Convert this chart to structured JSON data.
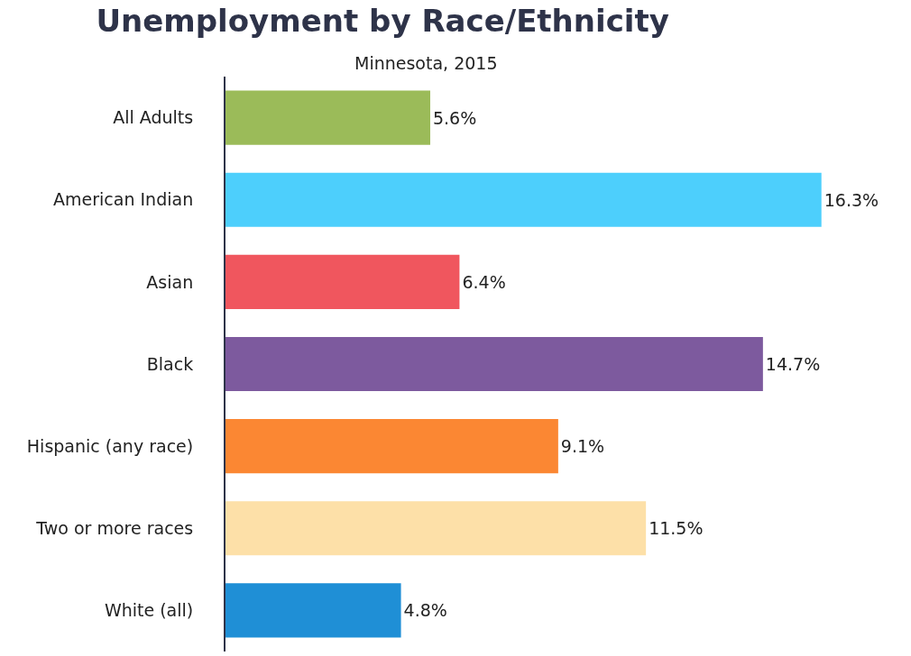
{
  "chart_data": {
    "type": "bar",
    "orientation": "horizontal",
    "title": "Unemployment by Race/Ethnicity",
    "subtitle": "Minnesota, 2015",
    "categories": [
      "All Adults",
      "American Indian",
      "Asian",
      "Black",
      "Hispanic (any race)",
      "Two or more races",
      "White (all)"
    ],
    "values": [
      5.6,
      16.3,
      6.4,
      14.7,
      9.1,
      11.5,
      4.8
    ],
    "value_labels": [
      "5.6%",
      "16.3%",
      "6.4%",
      "14.7%",
      "9.1%",
      "11.5%",
      "4.8%"
    ],
    "colors": [
      "#9bbb59",
      "#4dcffc",
      "#f0565e",
      "#7d5a9e",
      "#fb8733",
      "#fde0a8",
      "#1f8fd6"
    ]
  }
}
